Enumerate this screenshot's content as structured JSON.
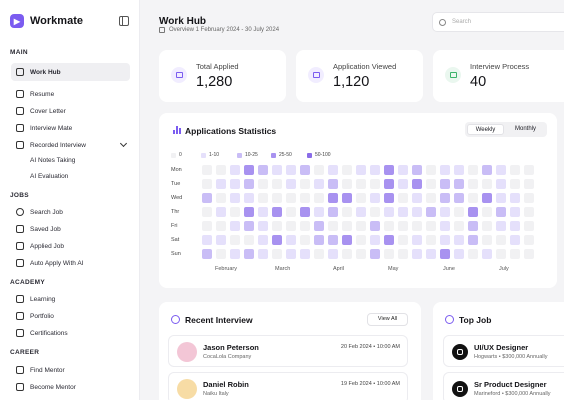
{
  "app": {
    "name": "Workmate"
  },
  "sidebar": {
    "sections": [
      {
        "title": "MAIN",
        "items": [
          {
            "label": "Work Hub",
            "icon": "grid-icon",
            "active": true
          },
          {
            "label": "Resume",
            "icon": "document-icon"
          },
          {
            "label": "Cover Letter",
            "icon": "file-text-icon"
          },
          {
            "label": "Interview Mate",
            "icon": "users-icon"
          },
          {
            "label": "Recorded Interview",
            "icon": "video-icon",
            "expanded": true
          },
          {
            "label": "AI Notes Taking",
            "sub": true
          },
          {
            "label": "AI Evaluation",
            "sub": true
          }
        ]
      },
      {
        "title": "JOBS",
        "items": [
          {
            "label": "Search Job",
            "icon": "search-icon"
          },
          {
            "label": "Saved Job",
            "icon": "bookmark-icon"
          },
          {
            "label": "Applied Job",
            "icon": "briefcase-icon"
          },
          {
            "label": "Auto Apply With AI",
            "icon": "rocket-icon"
          }
        ]
      },
      {
        "title": "ACADEMY",
        "items": [
          {
            "label": "Learning",
            "icon": "graduation-cap-icon"
          },
          {
            "label": "Portfolio",
            "icon": "folder-icon"
          },
          {
            "label": "Certifications",
            "icon": "certificate-icon"
          }
        ]
      },
      {
        "title": "CAREER",
        "items": [
          {
            "label": "Find Mentor",
            "icon": "mentor-icon"
          },
          {
            "label": "Become Mentor",
            "icon": "user-plus-icon"
          }
        ]
      }
    ]
  },
  "header": {
    "title": "Work Hub",
    "subtitle": "Overview 1 February 2024 - 30 July 2024"
  },
  "search": {
    "placeholder": "Search"
  },
  "stats": [
    {
      "label": "Total Applied",
      "value": "1,280",
      "icon": "inbox-icon",
      "accent": "#7b5cf0"
    },
    {
      "label": "Application Viewed",
      "value": "1,120",
      "icon": "eye-icon",
      "accent": "#7b5cf0"
    },
    {
      "label": "Interview Process",
      "value": "40",
      "icon": "clipboard-icon",
      "accent": "#3bb36a"
    }
  ],
  "statistics": {
    "title": "Applications Statistics",
    "toggle": {
      "options": [
        "Weekly",
        "Monthly"
      ],
      "selected": "Weekly"
    },
    "legend": [
      {
        "label": "0",
        "color": "#f1f1f3"
      },
      {
        "label": "1-10",
        "color": "#e5e0fb"
      },
      {
        "label": "10-25",
        "color": "#c9bdf6"
      },
      {
        "label": "25-50",
        "color": "#a892f0"
      },
      {
        "label": "50-100",
        "color": "#8a6ce8"
      }
    ],
    "days": [
      "Mon",
      "Tue",
      "Wed",
      "Thr",
      "Fri",
      "Sat",
      "Sun"
    ],
    "months": [
      "February",
      "March",
      "April",
      "May",
      "June",
      "July"
    ]
  },
  "chart_data": {
    "type": "heatmap",
    "title": "Applications Statistics",
    "rows": [
      "Mon",
      "Tue",
      "Wed",
      "Thr",
      "Fri",
      "Sat",
      "Sun"
    ],
    "columns_per_row": 24,
    "month_labels": [
      "February",
      "March",
      "April",
      "May",
      "June",
      "July"
    ],
    "levels": [
      "0",
      "1-10",
      "10-25",
      "25-50",
      "50-100"
    ],
    "grid": [
      [
        0,
        0,
        1,
        3,
        2,
        1,
        1,
        2,
        0,
        1,
        0,
        1,
        1,
        3,
        1,
        2,
        0,
        1,
        1,
        0,
        2,
        1,
        0,
        0
      ],
      [
        0,
        1,
        1,
        2,
        0,
        0,
        1,
        0,
        1,
        2,
        0,
        0,
        0,
        3,
        1,
        3,
        0,
        2,
        2,
        0,
        0,
        1,
        0,
        0
      ],
      [
        2,
        0,
        1,
        1,
        0,
        0,
        0,
        0,
        0,
        3,
        3,
        0,
        1,
        3,
        0,
        1,
        0,
        2,
        2,
        0,
        3,
        1,
        1,
        0
      ],
      [
        0,
        1,
        0,
        3,
        1,
        3,
        0,
        3,
        1,
        2,
        0,
        1,
        0,
        1,
        1,
        1,
        2,
        1,
        0,
        3,
        0,
        2,
        1,
        0
      ],
      [
        0,
        0,
        1,
        2,
        1,
        0,
        0,
        0,
        2,
        0,
        0,
        0,
        2,
        0,
        0,
        0,
        0,
        1,
        0,
        2,
        0,
        1,
        1,
        0
      ],
      [
        1,
        1,
        0,
        0,
        1,
        3,
        1,
        0,
        2,
        2,
        3,
        0,
        1,
        3,
        0,
        1,
        0,
        1,
        1,
        2,
        0,
        0,
        1,
        0
      ],
      [
        2,
        0,
        1,
        2,
        1,
        0,
        1,
        1,
        0,
        1,
        0,
        0,
        2,
        0,
        0,
        1,
        1,
        3,
        1,
        0,
        1,
        0,
        0,
        0
      ]
    ]
  },
  "recent_interview": {
    "title": "Recent Interview",
    "view_all": "View All",
    "items": [
      {
        "name": "Jason Peterson",
        "company": "CocaLola Company",
        "date": "20 Feb 2024 • 10:00 AM",
        "avatar_color": "#f3c6d6"
      },
      {
        "name": "Daniel Robin",
        "company": "Naiku Italy",
        "date": "19 Feb 2024 • 10:00 AM",
        "avatar_color": "#f7dca5"
      }
    ]
  },
  "top_job": {
    "title": "Top Job",
    "items": [
      {
        "title": "UI/UX Designer",
        "meta": "Hogwarts • $300,000 Annually",
        "icon": "brand-logo-icon"
      },
      {
        "title": "Sr Product Designer",
        "meta": "Marineford • $300,000 Annually",
        "icon": "brand-logo-icon"
      }
    ]
  }
}
